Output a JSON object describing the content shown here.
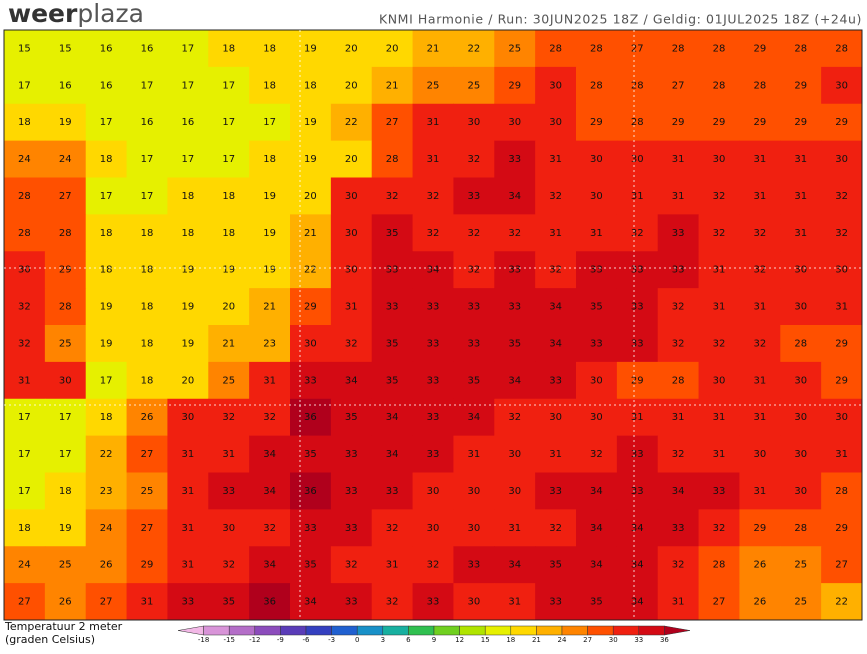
{
  "header": {
    "logo_bold": "weer",
    "logo_light": "plaza",
    "run_info": "KNMI Harmonie  /  Run: 30JUN2025 18Z  /  Geldig: 01JUL2025 18Z (+24u)"
  },
  "legend": {
    "title": "Temperatuur 2 meter",
    "subtitle": "(graden Celsius)"
  },
  "colorbar": {
    "range": [
      -21,
      39
    ],
    "ticks": [
      -18,
      -15,
      -12,
      -9,
      -6,
      -3,
      0,
      3,
      6,
      9,
      12,
      15,
      18,
      21,
      24,
      27,
      30,
      33,
      36
    ],
    "colors": [
      "#f2b8e6",
      "#d894d8",
      "#b46ec8",
      "#8c4cbc",
      "#5a3cb8",
      "#3440c0",
      "#2060d0",
      "#1890c8",
      "#18b0a0",
      "#30c050",
      "#70d020",
      "#b0e400",
      "#e6f000",
      "#ffd800",
      "#ffb000",
      "#ff8400",
      "#ff5000",
      "#f02010",
      "#d40a14",
      "#b0001c"
    ]
  },
  "map": {
    "rows": [
      [
        15,
        15,
        16,
        16,
        17,
        18,
        18,
        19,
        20,
        20,
        21,
        22,
        25,
        28,
        28,
        27,
        28,
        28,
        29,
        28,
        28
      ],
      [
        17,
        16,
        16,
        17,
        17,
        17,
        18,
        18,
        20,
        21,
        25,
        25,
        29,
        30,
        28,
        28,
        27,
        28,
        28,
        29,
        30
      ],
      [
        18,
        19,
        17,
        16,
        16,
        17,
        17,
        19,
        22,
        27,
        31,
        30,
        30,
        30,
        29,
        28,
        29,
        29,
        29,
        29,
        29
      ],
      [
        24,
        24,
        18,
        17,
        17,
        17,
        18,
        19,
        20,
        28,
        31,
        32,
        33,
        31,
        30,
        30,
        31,
        30,
        31,
        31,
        30
      ],
      [
        28,
        27,
        17,
        17,
        18,
        18,
        19,
        20,
        30,
        32,
        32,
        33,
        34,
        32,
        30,
        31,
        31,
        32,
        31,
        31,
        32
      ],
      [
        28,
        28,
        18,
        18,
        18,
        18,
        19,
        21,
        30,
        35,
        32,
        32,
        32,
        31,
        31,
        32,
        33,
        32,
        32,
        31,
        32
      ],
      [
        30,
        29,
        18,
        18,
        19,
        19,
        19,
        22,
        30,
        33,
        34,
        32,
        33,
        32,
        33,
        33,
        33,
        31,
        32,
        30,
        30
      ],
      [
        32,
        28,
        19,
        18,
        19,
        20,
        21,
        29,
        31,
        33,
        33,
        33,
        33,
        34,
        35,
        33,
        32,
        31,
        31,
        30,
        31
      ],
      [
        32,
        25,
        19,
        18,
        19,
        21,
        23,
        30,
        32,
        35,
        33,
        33,
        35,
        34,
        33,
        33,
        32,
        32,
        32,
        28,
        29
      ],
      [
        31,
        30,
        17,
        18,
        20,
        25,
        31,
        33,
        34,
        35,
        33,
        35,
        34,
        33,
        30,
        29,
        28,
        30,
        31,
        30,
        29
      ],
      [
        17,
        17,
        18,
        26,
        30,
        32,
        32,
        36,
        35,
        34,
        33,
        34,
        32,
        30,
        30,
        31,
        31,
        31,
        31,
        30,
        30
      ],
      [
        17,
        17,
        22,
        27,
        31,
        31,
        34,
        35,
        33,
        34,
        33,
        31,
        30,
        31,
        32,
        33,
        32,
        31,
        30,
        30,
        31
      ],
      [
        17,
        18,
        23,
        25,
        31,
        33,
        34,
        36,
        33,
        33,
        30,
        30,
        30,
        33,
        34,
        33,
        34,
        33,
        31,
        30,
        28
      ],
      [
        18,
        19,
        24,
        27,
        31,
        30,
        32,
        33,
        33,
        32,
        30,
        30,
        31,
        32,
        34,
        34,
        33,
        32,
        29,
        28,
        29
      ],
      [
        24,
        25,
        26,
        29,
        31,
        32,
        34,
        35,
        32,
        31,
        32,
        33,
        34,
        35,
        34,
        34,
        32,
        28,
        26,
        25,
        27
      ],
      [
        27,
        26,
        27,
        31,
        33,
        35,
        36,
        34,
        33,
        32,
        33,
        30,
        31,
        33,
        35,
        34,
        31,
        27,
        26,
        25,
        22
      ]
    ]
  }
}
